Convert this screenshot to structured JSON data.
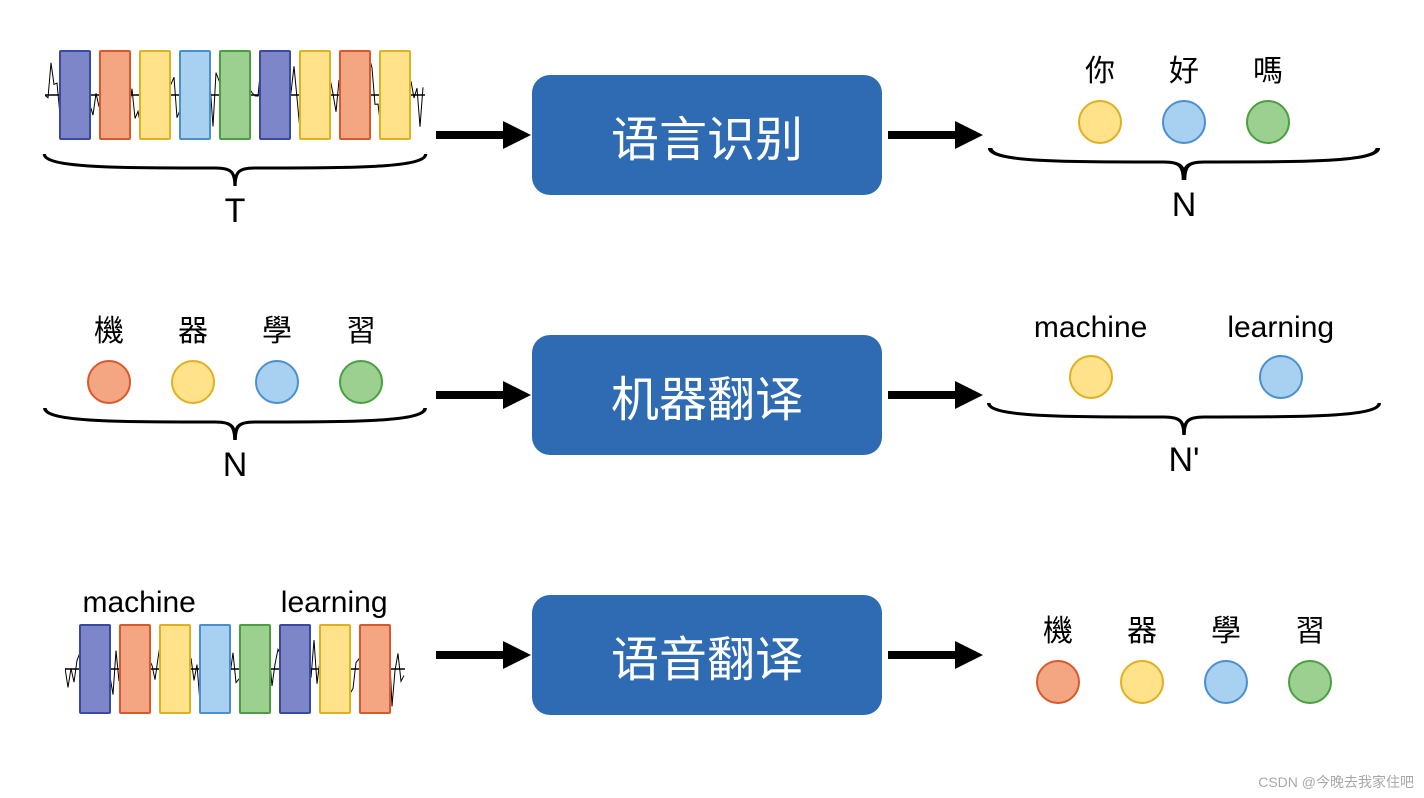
{
  "colors": {
    "box_bg": "#2e6bb3",
    "box_text": "#ffffff",
    "arrow": "#000000",
    "brace": "#000000",
    "wave": "#000000",
    "bar_purple_fill": "#7c86c8",
    "bar_purple_stroke": "#3a4aa0",
    "bar_orange_fill": "#f4a582",
    "bar_orange_stroke": "#d85a2a",
    "bar_yellow_fill": "#ffe28a",
    "bar_yellow_stroke": "#e0b020",
    "bar_blue_fill": "#a8d0f0",
    "bar_blue_stroke": "#4a90d0",
    "bar_green_fill": "#9cd090",
    "bar_green_stroke": "#4aa040",
    "circ_orange_fill": "#f4a582",
    "circ_orange_stroke": "#d85a2a",
    "circ_yellow_fill": "#ffe28a",
    "circ_yellow_stroke": "#e0b020",
    "circ_blue_fill": "#a8d0f0",
    "circ_blue_stroke": "#4a90d0",
    "circ_green_fill": "#9cd090",
    "circ_green_stroke": "#4aa040"
  },
  "rows": [
    {
      "left_type": "wave",
      "left_bars": [
        "purple",
        "orange",
        "yellow",
        "blue",
        "green",
        "purple",
        "yellow",
        "orange",
        "yellow"
      ],
      "left_brace_label": "T",
      "box_label": "语言识别",
      "right_tokens": [
        {
          "label": "你",
          "color": "yellow"
        },
        {
          "label": "好",
          "color": "blue"
        },
        {
          "label": "嗎",
          "color": "green"
        }
      ],
      "right_brace_label": "N"
    },
    {
      "left_type": "tokens",
      "left_tokens": [
        {
          "label": "機",
          "color": "orange"
        },
        {
          "label": "器",
          "color": "yellow"
        },
        {
          "label": "學",
          "color": "blue"
        },
        {
          "label": "習",
          "color": "green"
        }
      ],
      "left_brace_label": "N",
      "box_label": "机器翻译",
      "right_tokens": [
        {
          "label": "machine",
          "color": "yellow"
        },
        {
          "label": "learning",
          "color": "blue"
        }
      ],
      "right_brace_label": "N'",
      "right_wide": true
    },
    {
      "left_type": "wave_labeled",
      "left_overlay_labels": [
        "machine",
        "learning"
      ],
      "left_bars": [
        "purple",
        "orange",
        "yellow",
        "blue",
        "green",
        "purple",
        "yellow",
        "orange"
      ],
      "box_label": "语音翻译",
      "right_tokens": [
        {
          "label": "機",
          "color": "orange"
        },
        {
          "label": "器",
          "color": "yellow"
        },
        {
          "label": "學",
          "color": "blue"
        },
        {
          "label": "習",
          "color": "green"
        }
      ]
    }
  ],
  "watermark": "CSDN @今晚去我家住吧"
}
